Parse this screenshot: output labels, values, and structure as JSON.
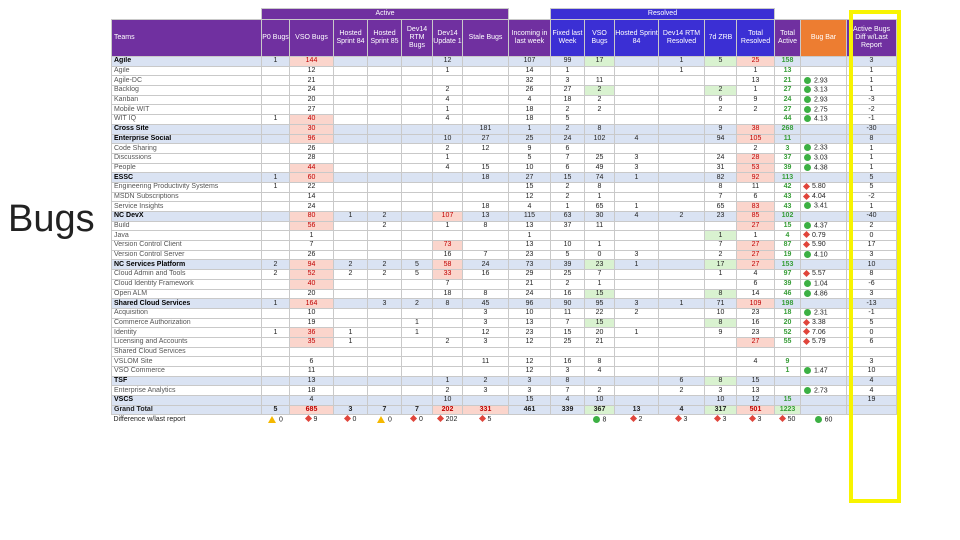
{
  "slide_title": "Bugs",
  "header": {
    "band_active": "Active",
    "band_resolved": "Resolved",
    "columns": [
      "Teams",
      "P0 Bugs",
      "VSO Bugs",
      "Hosted Sprint 84",
      "Hosted Sprint 85",
      "Dev14 RTM Bugs",
      "Dev14 Update 1",
      "Stale Bugs",
      "Incoming in last week",
      "Fixed last Week",
      "VSO Bugs",
      "Hosted Sprint 84",
      "Dev14 RTM Resolved",
      "7d ZRB",
      "Total Resolved",
      "Total Active",
      "Bug Bar",
      "Active Bugs Diff w/Last Report"
    ]
  },
  "colors": {
    "active": "#7030a0",
    "resolved": "#3b2fd4",
    "bug_bar": "#ed7d31",
    "group_row": "#dae3f3",
    "highlight": "#f8f400"
  },
  "rows": [
    {
      "t": "g",
      "c": [
        "Agile",
        "1",
        "144",
        "",
        "",
        "",
        "12",
        "",
        "107",
        "99",
        "17",
        "",
        "1",
        "5",
        "25",
        "158",
        "",
        "3"
      ]
    },
    {
      "t": "s",
      "c": [
        "Agile",
        "",
        "12",
        "",
        "",
        "",
        "1",
        "",
        "14",
        "1",
        "",
        "",
        "1",
        "",
        "1",
        "13",
        "",
        "1"
      ],
      "i": ""
    },
    {
      "t": "s",
      "c": [
        "Agile-DC",
        "",
        "21",
        "",
        "",
        "",
        "",
        "",
        "32",
        "3",
        "11",
        "",
        "",
        "",
        "13",
        "21",
        "2.93",
        "1"
      ],
      "i": "g"
    },
    {
      "t": "s",
      "c": [
        "Backlog",
        "",
        "24",
        "",
        "",
        "",
        "2",
        "",
        "26",
        "27",
        "2",
        "",
        "",
        "2",
        "1",
        "27",
        "3.13",
        "1"
      ],
      "i": "g"
    },
    {
      "t": "s",
      "c": [
        "Kanban",
        "",
        "20",
        "",
        "",
        "",
        "4",
        "",
        "4",
        "18",
        "2",
        "",
        "",
        "6",
        "9",
        "24",
        "2.93",
        "-3"
      ],
      "i": "g"
    },
    {
      "t": "s",
      "c": [
        "Mobile WIT",
        "",
        "27",
        "",
        "",
        "",
        "1",
        "",
        "18",
        "2",
        "2",
        "",
        "",
        "2",
        "2",
        "27",
        "2.75",
        "-2"
      ],
      "i": "g"
    },
    {
      "t": "s",
      "c": [
        "WIT IQ",
        "1",
        "40",
        "",
        "",
        "",
        "4",
        "",
        "18",
        "5",
        "",
        "",
        "",
        "",
        "",
        "44",
        "4.13",
        "-1"
      ],
      "i": "g"
    },
    {
      "t": "g",
      "c": [
        "Cross Site",
        "",
        "30",
        "",
        "",
        "",
        "",
        "181",
        "1",
        "2",
        "8",
        "",
        "",
        "9",
        "38",
        "268",
        "",
        "-30"
      ]
    },
    {
      "t": "g",
      "c": [
        "Enterprise Social",
        "",
        "96",
        "",
        "",
        "",
        "10",
        "27",
        "25",
        "24",
        "102",
        "4",
        "",
        "94",
        "105",
        "11",
        "",
        "8"
      ]
    },
    {
      "t": "s",
      "c": [
        "Code Sharing",
        "",
        "26",
        "",
        "",
        "",
        "2",
        "12",
        "9",
        "6",
        "",
        "",
        "",
        "",
        "2",
        "3",
        "2.33",
        "1"
      ],
      "i": "g"
    },
    {
      "t": "s",
      "c": [
        "Discussions",
        "",
        "28",
        "",
        "",
        "",
        "1",
        "",
        "5",
        "7",
        "25",
        "3",
        "",
        "24",
        "28",
        "37",
        "3.03",
        "1"
      ],
      "i": "g"
    },
    {
      "t": "s",
      "c": [
        "People",
        "",
        "44",
        "",
        "",
        "",
        "4",
        "15",
        "10",
        "6",
        "49",
        "3",
        "",
        "31",
        "53",
        "39",
        "4.38",
        "1"
      ],
      "i": "g"
    },
    {
      "t": "g",
      "c": [
        "ESSC",
        "1",
        "60",
        "",
        "",
        "",
        "",
        "18",
        "27",
        "15",
        "74",
        "1",
        "",
        "82",
        "92",
        "113",
        "",
        "5"
      ]
    },
    {
      "t": "r",
      "c": [
        "Engineering Productivity Systems",
        "1",
        "22",
        "",
        "",
        "",
        "",
        "",
        "15",
        "2",
        "8",
        "",
        "",
        "8",
        "11",
        "42",
        "5.80",
        "5"
      ],
      "i": "r"
    },
    {
      "t": "s",
      "c": [
        "MSDN Subscriptions",
        "",
        "14",
        "",
        "",
        "",
        "",
        "",
        "12",
        "2",
        "1",
        "",
        "",
        "7",
        "6",
        "43",
        "4.04",
        "-2"
      ],
      "i": "r"
    },
    {
      "t": "s",
      "c": [
        "Service Insights",
        "",
        "24",
        "",
        "",
        "",
        "",
        "18",
        "4",
        "1",
        "65",
        "1",
        "",
        "65",
        "83",
        "43",
        "3.41",
        "1"
      ],
      "i": "g"
    },
    {
      "t": "g",
      "c": [
        "NC DevX",
        "",
        "80",
        "1",
        "2",
        "",
        "107",
        "13",
        "115",
        "63",
        "30",
        "4",
        "2",
        "23",
        "85",
        "102",
        "",
        "-40"
      ]
    },
    {
      "t": "s",
      "c": [
        "Build",
        "",
        "56",
        "",
        "2",
        "",
        "1",
        "8",
        "13",
        "37",
        "11",
        "",
        "",
        "",
        "27",
        "15",
        "4.37",
        "2"
      ],
      "i": "g"
    },
    {
      "t": "s",
      "c": [
        "Java",
        "",
        "1",
        "",
        "",
        "",
        "",
        "",
        "1",
        "",
        "",
        "",
        "",
        "1",
        "1",
        "4",
        "0.79",
        "0"
      ],
      "i": "r"
    },
    {
      "t": "r",
      "c": [
        "Version Control Client",
        "",
        "7",
        "",
        "",
        "",
        "73",
        "",
        "13",
        "10",
        "1",
        "",
        "",
        "7",
        "27",
        "87",
        "5.90",
        "17"
      ],
      "i": "r"
    },
    {
      "t": "s",
      "c": [
        "Version Control Server",
        "",
        "26",
        "",
        "",
        "",
        "16",
        "7",
        "23",
        "5",
        "0",
        "3",
        "",
        "2",
        "27",
        "19",
        "4.10",
        "3"
      ],
      "i": "g"
    },
    {
      "t": "g",
      "c": [
        "NC Services Platform",
        "2",
        "94",
        "2",
        "2",
        "5",
        "58",
        "24",
        "73",
        "39",
        "23",
        "1",
        "",
        "17",
        "27",
        "153",
        "",
        "10"
      ]
    },
    {
      "t": "r",
      "c": [
        "Cloud Admin and Tools",
        "2",
        "52",
        "2",
        "2",
        "5",
        "33",
        "16",
        "29",
        "25",
        "7",
        "",
        "",
        "1",
        "4",
        "97",
        "5.57",
        "8"
      ],
      "i": "r"
    },
    {
      "t": "s",
      "c": [
        "Cloud Identity Framework",
        "",
        "40",
        "",
        "",
        "",
        "7",
        "",
        "21",
        "2",
        "1",
        "",
        "",
        "",
        "6",
        "39",
        "1.04",
        "-6"
      ],
      "i": "g"
    },
    {
      "t": "s",
      "c": [
        "Open ALM",
        "",
        "20",
        "",
        "",
        "",
        "18",
        "8",
        "24",
        "16",
        "15",
        "",
        "",
        "8",
        "14",
        "46",
        "4.86",
        "3"
      ],
      "i": "g"
    },
    {
      "t": "g",
      "c": [
        "Shared Cloud Services",
        "1",
        "164",
        "",
        "3",
        "2",
        "8",
        "45",
        "96",
        "90",
        "95",
        "3",
        "1",
        "71",
        "109",
        "198",
        "",
        "-13"
      ]
    },
    {
      "t": "s",
      "c": [
        "Acquisition",
        "",
        "10",
        "",
        "",
        "",
        "",
        "3",
        "10",
        "11",
        "22",
        "2",
        "",
        "10",
        "23",
        "18",
        "2.31",
        "-1"
      ],
      "i": "g"
    },
    {
      "t": "s",
      "c": [
        "Commerce Authorization",
        "",
        "19",
        "",
        "",
        "1",
        "",
        "3",
        "13",
        "7",
        "15",
        "",
        "",
        "8",
        "16",
        "20",
        "3.38",
        "5"
      ],
      "i": "r"
    },
    {
      "t": "r",
      "c": [
        "Identity",
        "1",
        "36",
        "1",
        "",
        "1",
        "",
        "12",
        "23",
        "15",
        "20",
        "1",
        "",
        "9",
        "23",
        "52",
        "7.06",
        "0"
      ],
      "i": "r"
    },
    {
      "t": "r",
      "c": [
        "Licensing and Accounts",
        "",
        "35",
        "1",
        "",
        "",
        "2",
        "3",
        "12",
        "25",
        "21",
        "",
        "",
        "",
        "27",
        "55",
        "5.79",
        "6"
      ],
      "i": "r"
    },
    {
      "t": "s",
      "c": [
        "Shared Cloud Services",
        "",
        "",
        "",
        "",
        "",
        "",
        "",
        "",
        "",
        "",
        "",
        "",
        "",
        "",
        "",
        "",
        ""
      ],
      "i": ""
    },
    {
      "t": "s",
      "c": [
        "VSLOM Site",
        "",
        "6",
        "",
        "",
        "",
        "",
        "11",
        "12",
        "16",
        "8",
        "",
        "",
        "",
        "4",
        "9",
        "",
        "3"
      ],
      "i": ""
    },
    {
      "t": "s",
      "c": [
        "VSO Commerce",
        "",
        "11",
        "",
        "",
        "",
        "",
        "",
        "12",
        "3",
        "4",
        "",
        "",
        "",
        "",
        "1",
        "1.47",
        "10"
      ],
      "i": "g"
    },
    {
      "t": "g",
      "c": [
        "TSF",
        "",
        "13",
        "",
        "",
        "",
        "1",
        "2",
        "3",
        "8",
        "",
        "",
        "6",
        "8",
        "15",
        "",
        "",
        "4"
      ]
    },
    {
      "t": "s",
      "c": [
        "Enterprise Analytics",
        "",
        "18",
        "",
        "",
        "",
        "2",
        "3",
        "3",
        "7",
        "2",
        "",
        "2",
        "3",
        "13",
        "",
        "2.73",
        "4"
      ],
      "i": "g"
    },
    {
      "t": "g",
      "c": [
        "VSCS",
        "",
        "4",
        "",
        "",
        "",
        "10",
        "",
        "15",
        "4",
        "10",
        "",
        "",
        "10",
        "12",
        "15",
        "",
        "19"
      ]
    },
    {
      "t": "total",
      "c": [
        "Grand Total",
        "5",
        "685",
        "3",
        "7",
        "7",
        "202",
        "331",
        "461",
        "339",
        "367",
        "13",
        "4",
        "317",
        "501",
        "1223",
        "",
        ""
      ]
    }
  ],
  "diff_row": {
    "label": "Difference w/last report",
    "cells": [
      [
        "t",
        "0"
      ],
      [
        "r",
        "9"
      ],
      [
        "r",
        "0"
      ],
      [
        "t",
        "0"
      ],
      [
        "r",
        "0"
      ],
      [
        "r",
        "202"
      ],
      [
        "r",
        "5"
      ],
      [
        "",
        ""
      ],
      [
        "",
        ""
      ],
      [
        "g",
        "8"
      ],
      [
        "r",
        "2"
      ],
      [
        "r",
        "3"
      ],
      [
        "r",
        "3"
      ],
      [
        "r",
        "3"
      ],
      [
        "r",
        "50"
      ],
      [
        "g",
        "60"
      ],
      [
        "",
        ""
      ]
    ]
  }
}
